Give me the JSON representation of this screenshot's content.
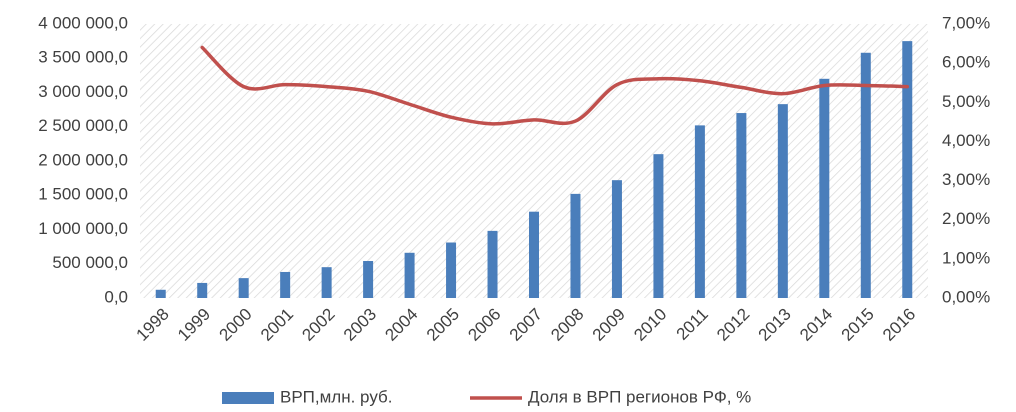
{
  "chart_data": {
    "type": "bar_line",
    "categories": [
      "1998",
      "1999",
      "2000",
      "2001",
      "2002",
      "2003",
      "2004",
      "2005",
      "2006",
      "2007",
      "2008",
      "2009",
      "2010",
      "2011",
      "2012",
      "2013",
      "2014",
      "2015",
      "2016"
    ],
    "series": [
      {
        "name": "ВРП,млн. руб.",
        "type": "bar",
        "color": "#4a7ebb",
        "values": [
          120000,
          220000,
          290000,
          380000,
          450000,
          540000,
          660000,
          810000,
          980000,
          1260000,
          1520000,
          1720000,
          2100000,
          2520000,
          2700000,
          2830000,
          3200000,
          3580000,
          3750000
        ]
      },
      {
        "name": "Доля в ВРП регионов РФ, %",
        "type": "line",
        "axis": "y2",
        "color": "#c0504d",
        "values": [
          null,
          6.4,
          5.4,
          5.45,
          5.4,
          5.28,
          4.95,
          4.62,
          4.45,
          4.55,
          4.52,
          5.45,
          5.6,
          5.55,
          5.38,
          5.22,
          5.43,
          5.43,
          5.4
        ]
      }
    ],
    "ylim": [
      0,
      4000000
    ],
    "yticks": [
      {
        "value": 0,
        "label": "0,0"
      },
      {
        "value": 500000,
        "label": "500 000,0"
      },
      {
        "value": 1000000,
        "label": "1 000 000,0"
      },
      {
        "value": 1500000,
        "label": "1 500 000,0"
      },
      {
        "value": 2000000,
        "label": "2 000 000,0"
      },
      {
        "value": 2500000,
        "label": "2 500 000,0"
      },
      {
        "value": 3000000,
        "label": "3 000 000,0"
      },
      {
        "value": 3500000,
        "label": "3 500 000,0"
      },
      {
        "value": 4000000,
        "label": "4 000 000,0"
      }
    ],
    "y2lim": [
      0,
      7
    ],
    "y2ticks": [
      {
        "value": 0,
        "label": "0,00%"
      },
      {
        "value": 1,
        "label": "1,00%"
      },
      {
        "value": 2,
        "label": "2,00%"
      },
      {
        "value": 3,
        "label": "3,00%"
      },
      {
        "value": 4,
        "label": "4,00%"
      },
      {
        "value": 5,
        "label": "5,00%"
      },
      {
        "value": 6,
        "label": "6,00%"
      },
      {
        "value": 7,
        "label": "7,00%"
      }
    ],
    "grid": false,
    "legend": "bottom"
  }
}
